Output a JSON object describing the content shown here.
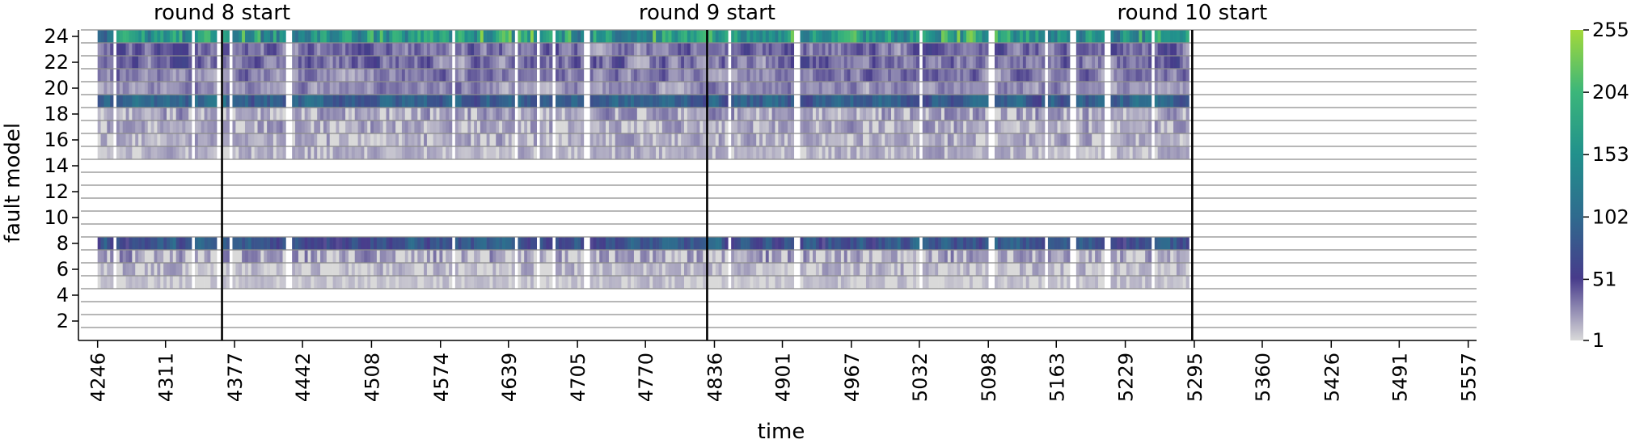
{
  "chart_data": {
    "type": "heatmap",
    "xlabel": "time",
    "ylabel": "fault model",
    "x_ticks": [
      "4246",
      "4311",
      "4377",
      "4442",
      "4508",
      "4574",
      "4639",
      "4705",
      "4770",
      "4836",
      "4901",
      "4967",
      "5032",
      "5098",
      "5163",
      "5229",
      "5295",
      "5360",
      "5426",
      "5491",
      "5557"
    ],
    "y_ticks": [
      "2",
      "4",
      "6",
      "8",
      "10",
      "12",
      "14",
      "16",
      "18",
      "20",
      "22",
      "24"
    ],
    "xlim": [
      4230,
      5565
    ],
    "ylim": [
      0.5,
      24.5
    ],
    "colorbar": {
      "ticks": [
        "1",
        "51",
        "102",
        "153",
        "204",
        "255"
      ],
      "min": 1,
      "max": 255,
      "colormap": "viridis (reversed, low values light grey)",
      "colors": [
        "#d9d9d9",
        "#473b8b",
        "#2f6b8e",
        "#21918c",
        "#3bb67a",
        "#a3d93a"
      ]
    },
    "rounds": [
      {
        "label": "round 8 start",
        "x": 4365
      },
      {
        "label": "round 9 start",
        "x": 4829
      },
      {
        "label": "round 10 start",
        "x": 5293
      }
    ],
    "active_range": [
      4246,
      5290
    ],
    "gaps": [
      [
        4261,
        4264
      ],
      [
        4335,
        4339
      ],
      [
        4360,
        4364
      ],
      [
        4371,
        4373
      ],
      [
        4426,
        4432
      ],
      [
        4505,
        4507
      ],
      [
        4585,
        4587
      ],
      [
        4643,
        4648
      ],
      [
        4664,
        4667
      ],
      [
        4679,
        4683
      ],
      [
        4711,
        4716
      ],
      [
        4763,
        4765
      ],
      [
        4849,
        4852
      ],
      [
        4910,
        4916
      ],
      [
        4955,
        4957
      ],
      [
        5030,
        5033
      ],
      [
        5097,
        5103
      ],
      [
        5151,
        5154
      ],
      [
        5176,
        5180
      ],
      [
        5209,
        5215
      ],
      [
        5253,
        5256
      ]
    ],
    "active_rows": [
      5,
      6,
      7,
      8,
      15,
      16,
      17,
      18,
      19,
      20,
      21,
      22,
      23,
      24
    ],
    "row_intensity": {
      "24": {
        "base": 95,
        "range": [
          60,
          255
        ]
      },
      "23": {
        "base": 25,
        "range": [
          1,
          70
        ]
      },
      "22": {
        "base": 22,
        "range": [
          1,
          70
        ]
      },
      "21": {
        "base": 15,
        "range": [
          1,
          60
        ]
      },
      "20": {
        "base": 12,
        "range": [
          1,
          50
        ]
      },
      "19": {
        "base": 75,
        "range": [
          40,
          140
        ]
      },
      "18": {
        "base": 12,
        "range": [
          1,
          45
        ]
      },
      "17": {
        "base": 10,
        "range": [
          1,
          40
        ]
      },
      "16": {
        "base": 8,
        "range": [
          1,
          35
        ]
      },
      "15": {
        "base": 6,
        "range": [
          1,
          30
        ]
      },
      "8": {
        "base": 65,
        "range": [
          25,
          130
        ]
      },
      "7": {
        "base": 12,
        "range": [
          1,
          45
        ]
      },
      "6": {
        "base": 6,
        "range": [
          1,
          30
        ]
      },
      "5": {
        "base": 3,
        "range": [
          1,
          20
        ]
      }
    }
  }
}
